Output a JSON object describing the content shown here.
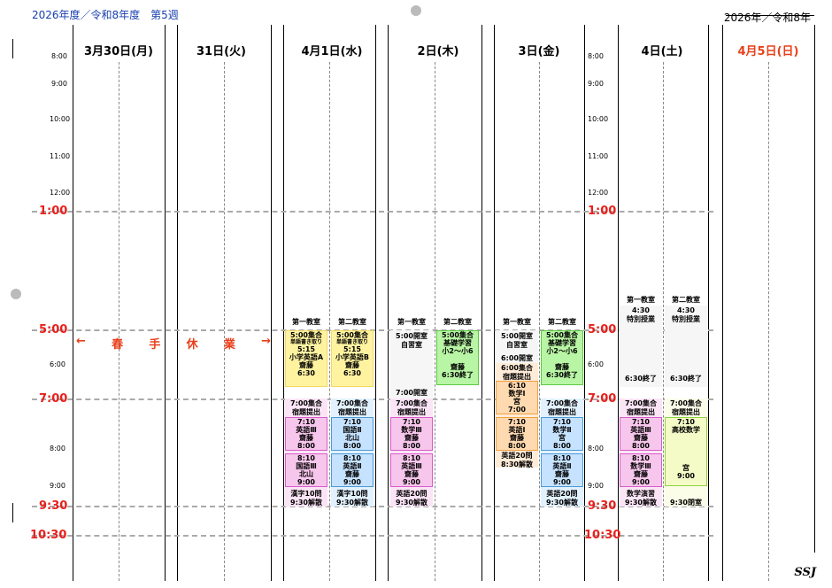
{
  "header": {
    "left": "2026年度／令和8年度　第5週",
    "right": "2026年／令和8年"
  },
  "days": [
    {
      "label": "3月30日(月)"
    },
    {
      "label": "31日(火)"
    },
    {
      "label": "4月1日(水)"
    },
    {
      "label": "2日(木)"
    },
    {
      "label": "3日(金)"
    },
    {
      "label": "4日(土)"
    },
    {
      "label": "4月5日(日)"
    }
  ],
  "times_small": [
    "8:00",
    "9:00",
    "10:00",
    "11:00",
    "12:00",
    "6:00",
    "8:00",
    "9:00"
  ],
  "times_big": [
    "1:00",
    "5:00",
    "7:00",
    "9:30",
    "10:30"
  ],
  "spring_break": [
    "←",
    "春",
    "手",
    "休",
    "業",
    "→"
  ],
  "rooms": {
    "first": "第一教室",
    "second": "第二教室"
  },
  "wed": {
    "r1": {
      "meet": "5:00集合",
      "sub": "単語書き取り",
      "t1": "5:15",
      "c1": "小学英語A",
      "n1": "齋藤",
      "e1": "6:30",
      "m2": "7:00集合",
      "s2": "宿題提出",
      "t2": "7:10",
      "c2": "英語Ⅲ",
      "n2": "齋藤",
      "e2": "8:00",
      "t3": "8:10",
      "c3": "国語Ⅲ",
      "n3": "北山",
      "e3": "9:00",
      "k1": "漢字10問",
      "k2": "9:30解散"
    },
    "r2": {
      "meet": "5:00集合",
      "sub": "単語書き取り",
      "t1": "5:15",
      "c1": "小学英語B",
      "n1": "齋藤",
      "e1": "6:30",
      "m2": "7:00集合",
      "s2": "宿題提出",
      "t2": "7:10",
      "c2": "国語Ⅱ",
      "n2": "北山",
      "e2": "8:00",
      "t3": "8:10",
      "c3": "英語Ⅱ",
      "n3": "齋藤",
      "e3": "9:00",
      "k1": "漢字10問",
      "k2": "9:30解散"
    }
  },
  "thu": {
    "r1": {
      "open": "5:00開室",
      "self": "自習室",
      "open2": "7:00開室",
      "m2": "7:00集合",
      "s2": "宿題提出",
      "t2": "7:10",
      "c2": "数学Ⅲ",
      "n2": "齋藤",
      "e2": "8:00",
      "t3": "8:10",
      "c3": "英語Ⅲ",
      "n3": "齋藤",
      "e3": "9:00",
      "k1": "英語20問",
      "k2": "9:30解散"
    },
    "r2": {
      "meet": "5:00集合",
      "c1": "基礎学習",
      "g1": "小2～小6",
      "n1": "齋藤",
      "end": "6:30終了"
    }
  },
  "fri": {
    "r1": {
      "open": "5:00開室",
      "self": "自習室",
      "open2": "6:00開室",
      "m2": "6:00集合",
      "s2": "宿題提出",
      "t2": "6:10",
      "c2": "数学Ⅰ",
      "n2": "宮",
      "e2": "7:00",
      "t3": "7:10",
      "c3": "英語Ⅰ",
      "n3": "齋藤",
      "e3": "8:00",
      "k1": "英語20問",
      "k2": "8:30解散"
    },
    "r2": {
      "meet": "5:00集合",
      "c1": "基礎学習",
      "g1": "小2～小6",
      "n1": "齋藤",
      "end": "6:30終了",
      "m2": "7:00集合",
      "s2": "宿題提出",
      "t2": "7:10",
      "c2": "数学Ⅱ",
      "n2": "宮",
      "e2": "8:00",
      "t3": "8:10",
      "c3": "英語Ⅱ",
      "n3": "齋藤",
      "e3": "9:00",
      "k1": "英語20問",
      "k2": "9:30解散"
    }
  },
  "sat": {
    "r1": {
      "t1": "4:30",
      "c1": "特別授業",
      "end": "6:30終了",
      "m2": "7:00集合",
      "s2": "宿題提出",
      "t2": "7:10",
      "c2": "英語Ⅲ",
      "n2": "齋藤",
      "e2": "8:00",
      "t3": "8:10",
      "c3": "数学Ⅲ",
      "n3": "齋藤",
      "e3": "9:00",
      "k1": "数学演習",
      "k2": "9:30解散"
    },
    "r2": {
      "t1": "4:30",
      "c1": "特別授業",
      "end": "6:30終了",
      "m2": "7:00集合",
      "s2": "宿題提出",
      "t2": "7:10",
      "c2": "高校数学",
      "n2": "宮",
      "e2": "9:00",
      "close": "9:30閉室"
    }
  },
  "footer": "SSJ"
}
